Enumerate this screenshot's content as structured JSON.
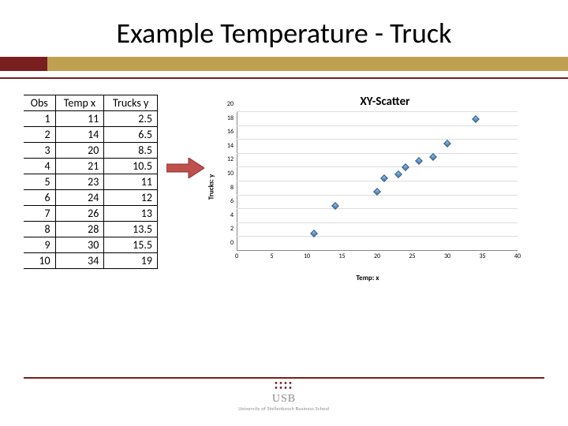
{
  "slide": {
    "title": "Example Temperature - Truck"
  },
  "table": {
    "headers": {
      "obs": "Obs",
      "temp": "Temp x",
      "trucks": "Trucks y"
    },
    "rows": [
      {
        "obs": "1",
        "temp": "11",
        "trucks": "2.5"
      },
      {
        "obs": "2",
        "temp": "14",
        "trucks": "6.5"
      },
      {
        "obs": "3",
        "temp": "20",
        "trucks": "8.5"
      },
      {
        "obs": "4",
        "temp": "21",
        "trucks": "10.5"
      },
      {
        "obs": "5",
        "temp": "23",
        "trucks": "11"
      },
      {
        "obs": "6",
        "temp": "24",
        "trucks": "12"
      },
      {
        "obs": "7",
        "temp": "26",
        "trucks": "13"
      },
      {
        "obs": "8",
        "temp": "28",
        "trucks": "13.5"
      },
      {
        "obs": "9",
        "temp": "30",
        "trucks": "15.5"
      },
      {
        "obs": "10",
        "temp": "34",
        "trucks": "19"
      }
    ]
  },
  "chart": {
    "type": "scatter",
    "title": "XY-Scatter",
    "xlabel": "Temp: x",
    "ylabel": "Trucks: y",
    "xlim": [
      0,
      40
    ],
    "xtick_step": 5,
    "ylim": [
      0,
      20
    ],
    "ytick_step": 2,
    "marker_color": "#3a6a9a",
    "grid_color": "#dddddd",
    "points": [
      {
        "x": 11,
        "y": 2.5
      },
      {
        "x": 14,
        "y": 6.5
      },
      {
        "x": 20,
        "y": 8.5
      },
      {
        "x": 21,
        "y": 10.5
      },
      {
        "x": 23,
        "y": 11
      },
      {
        "x": 24,
        "y": 12
      },
      {
        "x": 26,
        "y": 13
      },
      {
        "x": 28,
        "y": 13.5
      },
      {
        "x": 30,
        "y": 15.5
      },
      {
        "x": 34,
        "y": 19
      }
    ]
  },
  "footer": {
    "logo": "USB",
    "sub": "University of Stellenbosch Business School"
  }
}
